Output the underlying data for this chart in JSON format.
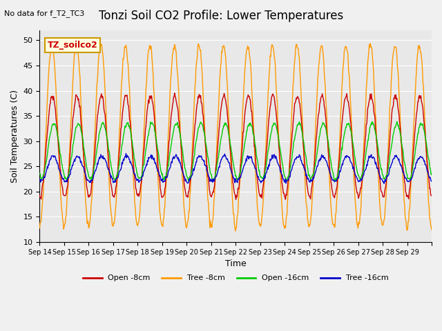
{
  "title": "Tonzi Soil CO2 Profile: Lower Temperatures",
  "subtitle": "No data for f_T2_TC3",
  "xlabel": "Time",
  "ylabel": "Soil Temperatures (C)",
  "ylim": [
    10,
    52
  ],
  "yticks": [
    10,
    15,
    20,
    25,
    30,
    35,
    40,
    45,
    50
  ],
  "legend_label": "TZ_soilco2",
  "series": {
    "open_8cm": {
      "color": "#cc0000",
      "label": "Open -8cm"
    },
    "tree_8cm": {
      "color": "#ff9900",
      "label": "Tree -8cm"
    },
    "open_16cm": {
      "color": "#00cc00",
      "label": "Open -16cm"
    },
    "tree_16cm": {
      "color": "#0000cc",
      "label": "Tree -16cm"
    }
  },
  "x_tick_labels": [
    "Sep 14",
    "Sep 15",
    "Sep 16",
    "Sep 17",
    "Sep 18",
    "Sep 19",
    "Sep 20",
    "Sep 21",
    "Sep 22",
    "Sep 23",
    "Sep 24",
    "Sep 25",
    "Sep 26",
    "Sep 27",
    "Sep 28",
    "Sep 29"
  ],
  "n_days": 16,
  "points_per_day": 48,
  "background_color": "#e8e8e8",
  "plot_bg_color": "#e8e8e8"
}
